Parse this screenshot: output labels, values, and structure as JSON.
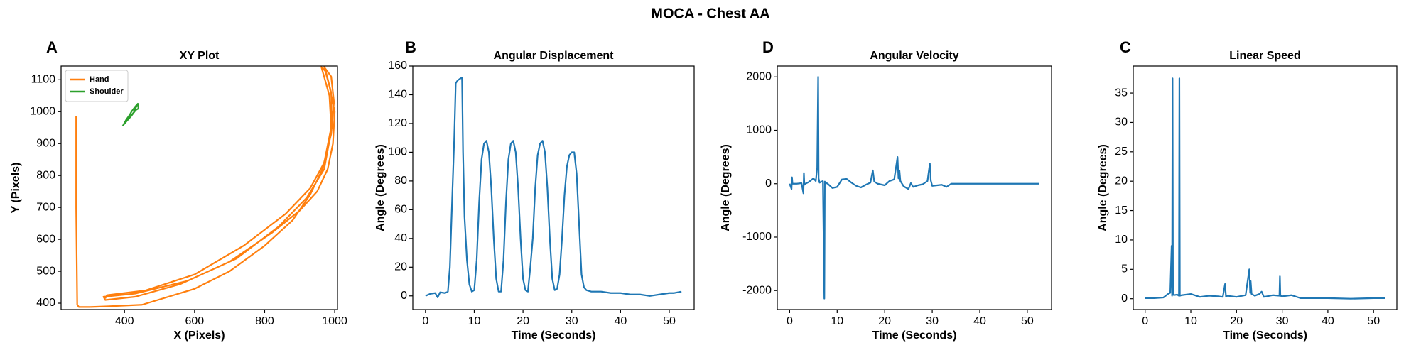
{
  "title": "MOCA - Chest AA",
  "chart_data": [
    {
      "type": "line",
      "panel": "A",
      "title": "XY Plot",
      "xlabel": "X (Pixels)",
      "ylabel": "Y (Pixels)",
      "xlim": [
        219,
        1008
      ],
      "ylim": [
        380,
        1143
      ],
      "xticks": [
        400,
        600,
        800,
        1000
      ],
      "yticks": [
        400,
        500,
        600,
        700,
        800,
        900,
        1000,
        1100
      ],
      "legend": "upper left",
      "series": [
        {
          "name": "Hand",
          "color": "#ff7f0e",
          "x": [
            262,
            262,
            265,
            270,
            300,
            350,
            450,
            600,
            700,
            800,
            880,
            930,
            965,
            990,
            998,
            990,
            970,
            985,
            1000,
            995,
            980,
            950,
            900,
            820,
            700,
            560,
            430,
            345,
            340,
            430,
            580,
            720,
            840,
            920,
            970,
            992,
            990,
            975,
            962,
            985,
            990,
            970,
            930,
            860,
            740,
            600,
            460,
            350,
            345
          ],
          "values": [
            985,
            700,
            395,
            388,
            388,
            390,
            395,
            445,
            500,
            580,
            660,
            740,
            820,
            930,
            1030,
            1110,
            1140,
            1080,
            1000,
            900,
            820,
            750,
            690,
            620,
            530,
            460,
            420,
            410,
            420,
            430,
            470,
            540,
            640,
            730,
            820,
            950,
            1060,
            1125,
            1140,
            1050,
            950,
            840,
            760,
            680,
            580,
            490,
            440,
            425,
            415
          ]
        },
        {
          "name": "Shoulder",
          "color": "#2ca02c",
          "x": [
            395,
            405,
            415,
            420,
            430,
            438,
            440,
            432,
            425,
            418,
            410,
            400,
            398,
            412,
            428,
            435
          ],
          "values": [
            955,
            975,
            990,
            1000,
            1015,
            1025,
            1010,
            1005,
            995,
            985,
            975,
            965,
            960,
            978,
            1000,
            1020
          ]
        }
      ]
    },
    {
      "type": "line",
      "panel": "B",
      "title": "Angular Displacement",
      "xlabel": "Time (Seconds)",
      "ylabel": "Angle (Degrees)",
      "xlim": [
        -2.6,
        55.1
      ],
      "ylim": [
        -9.5,
        160
      ],
      "xticks": [
        0,
        10,
        20,
        30,
        40,
        50
      ],
      "yticks": [
        0,
        20,
        40,
        60,
        80,
        100,
        120,
        140,
        160
      ],
      "series": [
        {
          "color": "#1f77b4",
          "x": [
            0,
            1,
            2,
            2.5,
            3,
            4,
            4.6,
            5,
            5.5,
            5.9,
            6.2,
            6.6,
            7,
            7.5,
            7.7,
            8,
            8.5,
            9,
            9.5,
            10,
            10.5,
            11,
            11.5,
            12,
            12.5,
            13,
            13.5,
            14,
            14.5,
            15,
            15.5,
            16,
            16.5,
            17,
            17.5,
            18,
            18.5,
            19,
            19.5,
            20,
            20.5,
            21,
            21.5,
            22,
            22.5,
            23,
            23.5,
            24,
            24.5,
            25,
            25.5,
            26,
            26.5,
            27,
            27.5,
            28,
            28.5,
            29,
            29.5,
            30,
            30.5,
            31,
            31.5,
            32,
            32.5,
            33,
            34,
            36,
            38,
            40,
            42,
            44,
            46,
            48,
            50,
            51,
            52.5
          ],
          "values": [
            0,
            1.5,
            2,
            -1,
            2.5,
            2,
            3,
            20,
            70,
            110,
            148,
            150,
            151,
            152,
            100,
            55,
            25,
            8,
            3,
            4,
            25,
            65,
            95,
            106,
            108,
            100,
            75,
            40,
            12,
            3,
            3,
            25,
            65,
            95,
            106,
            108,
            100,
            75,
            40,
            12,
            4,
            3,
            20,
            40,
            75,
            98,
            106,
            108,
            100,
            75,
            40,
            12,
            4,
            5,
            15,
            40,
            70,
            90,
            98,
            100,
            100,
            85,
            50,
            15,
            6,
            4,
            3,
            3,
            2,
            2,
            1,
            1,
            0,
            1,
            2,
            2,
            3
          ]
        }
      ]
    },
    {
      "type": "line",
      "panel": "D",
      "title": "Angular Velocity",
      "xlabel": "Time (Seconds)",
      "ylabel": "Angle (Degrees)",
      "xlim": [
        -2.6,
        55.1
      ],
      "ylim": [
        -2356,
        2203
      ],
      "xticks": [
        0,
        10,
        20,
        30,
        40,
        50
      ],
      "yticks": [
        -2000,
        -1000,
        0,
        1000,
        2000
      ],
      "series": [
        {
          "color": "#1f77b4",
          "x": [
            0,
            0.4,
            0.5,
            0.6,
            1.5,
            2.5,
            2.9,
            3,
            3.1,
            3.3,
            4,
            5,
            5.5,
            5.8,
            6,
            6.1,
            6.3,
            7,
            7.3,
            7.4,
            7.6,
            8,
            9,
            10,
            11,
            12,
            13,
            14,
            15,
            16,
            17,
            17.5,
            17.8,
            18.5,
            20,
            21,
            22,
            22.7,
            22.9,
            23.1,
            23.3,
            24,
            25,
            25.5,
            26,
            27,
            28,
            29,
            29.5,
            29.7,
            30,
            31,
            32,
            33,
            34,
            36,
            40,
            45,
            50,
            52.5
          ],
          "values": [
            0,
            -100,
            120,
            0,
            0,
            10,
            -180,
            200,
            -20,
            0,
            30,
            100,
            50,
            300,
            2000,
            100,
            20,
            50,
            -2150,
            40,
            20,
            0,
            -80,
            -60,
            80,
            90,
            20,
            -40,
            -70,
            -20,
            20,
            250,
            40,
            0,
            -30,
            50,
            80,
            500,
            100,
            250,
            50,
            -50,
            -100,
            10,
            -60,
            -30,
            -10,
            50,
            380,
            60,
            -40,
            -30,
            -20,
            -60,
            0,
            0,
            0,
            0,
            0,
            0
          ]
        }
      ]
    },
    {
      "type": "line",
      "panel": "C",
      "title": "Linear Speed",
      "xlabel": "Time (Seconds)",
      "ylabel": "Angle (Degrees)",
      "xlim": [
        -2.6,
        55.1
      ],
      "ylim": [
        -1.85,
        39.6
      ],
      "xticks": [
        0,
        10,
        20,
        30,
        40,
        50
      ],
      "yticks": [
        0,
        5,
        10,
        15,
        20,
        25,
        30,
        35
      ],
      "series": [
        {
          "color": "#1f77b4",
          "x": [
            0,
            2,
            4,
            5,
            5.5,
            5.8,
            5.9,
            6,
            6.1,
            6.3,
            7,
            7.4,
            7.5,
            7.6,
            8,
            10,
            12,
            14,
            16,
            17,
            17.5,
            17.7,
            18,
            20,
            22,
            22.8,
            23,
            23.1,
            23.3,
            24,
            25,
            25.5,
            26,
            28,
            29.4,
            29.5,
            29.6,
            30,
            32,
            34,
            40,
            45,
            50,
            52.5
          ],
          "values": [
            0.1,
            0.1,
            0.2,
            0.8,
            1,
            9,
            0.5,
            37.5,
            0.8,
            0.6,
            0.7,
            0.5,
            37.5,
            0.5,
            0.6,
            0.8,
            0.3,
            0.5,
            0.4,
            0.3,
            2.5,
            0.3,
            0.5,
            0.3,
            0.6,
            5,
            1,
            3,
            0.8,
            0.5,
            0.8,
            1.2,
            0.3,
            0.6,
            0.5,
            3.8,
            0.5,
            0.4,
            0.6,
            0.1,
            0.1,
            0,
            0.1,
            0.1
          ]
        }
      ]
    }
  ]
}
